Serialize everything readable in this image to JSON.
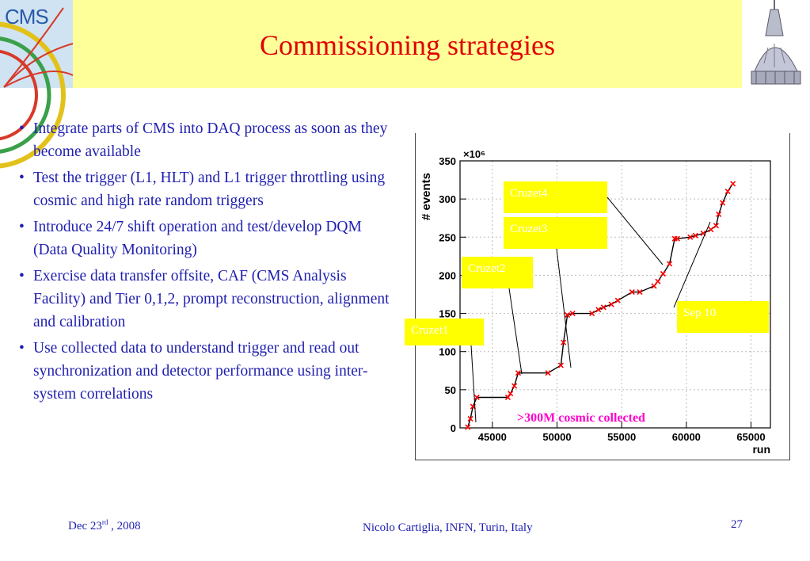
{
  "header": {
    "logo_text": "CMS",
    "title": "Commissioning strategies"
  },
  "bullets": [
    "Integrate parts of CMS into DAQ process as soon as they become available",
    "Test the trigger (L1, HLT) and L1 trigger throttling using cosmic and high rate random triggers",
    "Introduce 24/7 shift operation and test/develop DQM (Data Quality Monitoring)",
    "Exercise data transfer offsite, CAF (CMS Analysis Facility) and Tier 0,1,2, prompt reconstruction, alignment and calibration",
    "Use collected data to understand trigger and read out  synchronization and detector performance using inter-system correlations"
  ],
  "chart_data": {
    "type": "line",
    "xlabel": "run",
    "ylabel": "# events",
    "y_multiplier": "×10⁶",
    "xlim": [
      42500,
      66500
    ],
    "ylim": [
      0,
      350
    ],
    "x_ticks": [
      45000,
      50000,
      55000,
      60000,
      65000
    ],
    "y_ticks": [
      0,
      50,
      100,
      150,
      200,
      250,
      300,
      350
    ],
    "grid": true,
    "series": [
      {
        "marker_color": "#ff0000",
        "line_color": "#000000",
        "x": [
          43100,
          43300,
          43500,
          43800,
          46200,
          46400,
          46700,
          47000,
          49300,
          50300,
          50500,
          50800,
          51200,
          52700,
          53200,
          53600,
          54200,
          54700,
          55800,
          56400,
          57500,
          57800,
          58200,
          58700,
          59100,
          59300,
          60300,
          60700,
          61300,
          61900,
          62300,
          62500,
          62800,
          63200,
          63600
        ],
        "y": [
          1,
          12,
          28,
          40,
          40,
          45,
          55,
          72,
          72,
          82,
          112,
          148,
          150,
          150,
          155,
          158,
          162,
          167,
          178,
          178,
          186,
          192,
          202,
          215,
          248,
          248,
          250,
          252,
          255,
          260,
          265,
          280,
          295,
          310,
          320
        ]
      }
    ],
    "annotations": [
      "Cruzet1",
      "Cruzet2",
      "Cruzet3",
      "Cruzet4",
      "Sep 10",
      ">300M cosmic collected"
    ]
  },
  "footer": {
    "date_main": "Dec 23",
    "date_sup": "rd",
    "date_year": " , 2008",
    "author": "Nicolo Cartiglia, INFN, Turin, Italy",
    "page": "27"
  }
}
